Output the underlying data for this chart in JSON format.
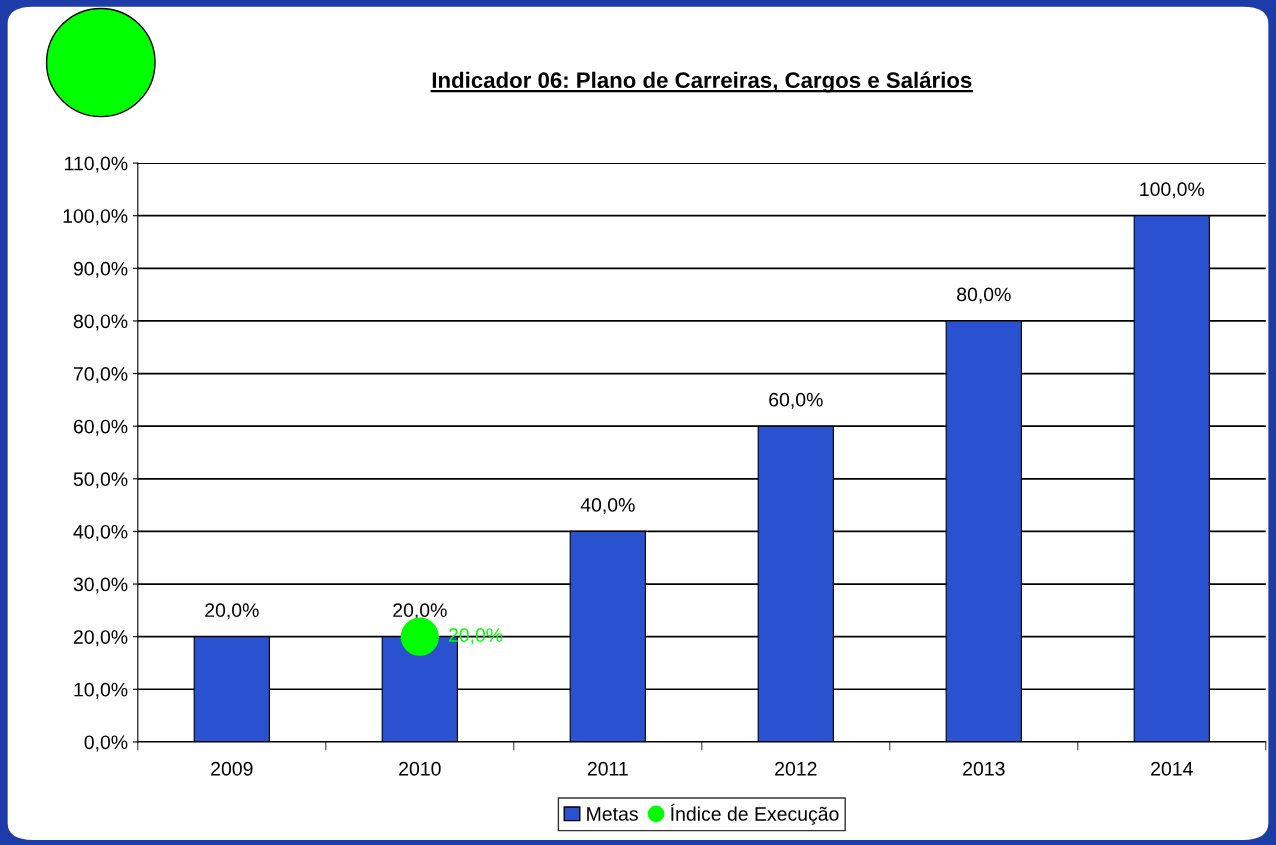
{
  "chart_data": {
    "type": "bar",
    "title": "Indicador 06: Plano de Carreiras, Cargos e Salários",
    "categories": [
      "2009",
      "2010",
      "2011",
      "2012",
      "2013",
      "2014"
    ],
    "series": [
      {
        "name": "Metas",
        "color": "#2a52d0",
        "values": [
          20,
          20,
          40,
          60,
          80,
          100
        ],
        "value_labels": [
          "20,0%",
          "20,0%",
          "40,0%",
          "60,0%",
          "80,0%",
          "100,0%"
        ]
      },
      {
        "name": "Índice de Execução",
        "type": "scatter",
        "color": "#00ff00",
        "marker": "circle",
        "values": [
          null,
          20,
          null,
          null,
          null,
          null
        ],
        "value_labels": [
          null,
          "20,0%",
          null,
          null,
          null,
          null
        ]
      }
    ],
    "ylim": [
      0,
      110
    ],
    "yticks": [
      {
        "value": 0,
        "label": "0,0%"
      },
      {
        "value": 10,
        "label": "10,0%"
      },
      {
        "value": 20,
        "label": "20,0%"
      },
      {
        "value": 30,
        "label": "30,0%"
      },
      {
        "value": 40,
        "label": "40,0%"
      },
      {
        "value": 50,
        "label": "50,0%"
      },
      {
        "value": 60,
        "label": "60,0%"
      },
      {
        "value": 70,
        "label": "70,0%"
      },
      {
        "value": 80,
        "label": "80,0%"
      },
      {
        "value": 90,
        "label": "90,0%"
      },
      {
        "value": 100,
        "label": "100,0%"
      },
      {
        "value": 110,
        "label": "110,0%"
      }
    ],
    "grid": "y",
    "legend": "bottom"
  }
}
